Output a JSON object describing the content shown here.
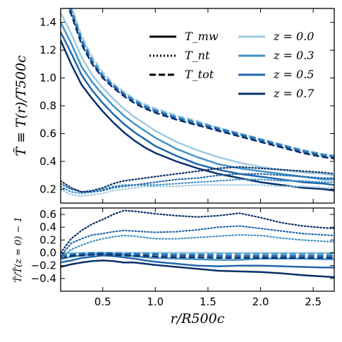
{
  "chart_data": [
    {
      "type": "line",
      "panel": "top",
      "ylabel": "T̃ ≡ T(r)/T500c",
      "xlabel": "",
      "xlim": [
        0.1,
        2.7
      ],
      "ylim": [
        0.1,
        1.5
      ],
      "yticks": [
        "0.2",
        "0.4",
        "0.6",
        "0.8",
        "1.0",
        "1.2",
        "1.4"
      ],
      "legend_styles": [
        {
          "label": "T_mw",
          "style": "solid"
        },
        {
          "label": "T_nt",
          "style": "dotted"
        },
        {
          "label": "T_tot",
          "style": "dashed"
        }
      ],
      "legend_redshifts": [
        {
          "label": "z = 0.0",
          "color": "#9ecae1"
        },
        {
          "label": "z = 0.3",
          "color": "#4292c6"
        },
        {
          "label": "z = 0.5",
          "color": "#2166ac"
        },
        {
          "label": "z = 0.7",
          "color": "#08306b"
        }
      ],
      "x": [
        0.1,
        0.2,
        0.3,
        0.4,
        0.5,
        0.6,
        0.7,
        0.8,
        0.9,
        1.0,
        1.2,
        1.4,
        1.6,
        1.8,
        2.0,
        2.2,
        2.4,
        2.6,
        2.7
      ],
      "series": [
        {
          "name": "T_mw, z = 0.0",
          "style": "solid",
          "color": "#9ecae1",
          "values": [
            1.47,
            1.32,
            1.15,
            1.02,
            0.93,
            0.85,
            0.78,
            0.72,
            0.67,
            0.62,
            0.54,
            0.48,
            0.43,
            0.39,
            0.36,
            0.34,
            0.32,
            0.31,
            0.3
          ]
        },
        {
          "name": "T_mw, z = 0.3",
          "style": "solid",
          "color": "#4292c6",
          "values": [
            1.4,
            1.25,
            1.08,
            0.97,
            0.88,
            0.8,
            0.73,
            0.67,
            0.62,
            0.57,
            0.49,
            0.43,
            0.38,
            0.35,
            0.33,
            0.31,
            0.29,
            0.27,
            0.27
          ]
        },
        {
          "name": "T_mw, z = 0.5",
          "style": "solid",
          "color": "#2166ac",
          "values": [
            1.33,
            1.18,
            1.02,
            0.91,
            0.82,
            0.74,
            0.67,
            0.61,
            0.56,
            0.51,
            0.44,
            0.38,
            0.34,
            0.31,
            0.29,
            0.27,
            0.25,
            0.24,
            0.23
          ]
        },
        {
          "name": "T_mw, z = 0.7",
          "style": "solid",
          "color": "#08306b",
          "values": [
            1.27,
            1.1,
            0.95,
            0.85,
            0.76,
            0.68,
            0.61,
            0.55,
            0.5,
            0.46,
            0.4,
            0.35,
            0.31,
            0.28,
            0.25,
            0.23,
            0.21,
            0.2,
            0.19
          ]
        },
        {
          "name": "T_tot, z = 0.0",
          "style": "dashed",
          "color": "#9ecae1",
          "values": [
            1.65,
            1.52,
            1.3,
            1.15,
            1.04,
            0.96,
            0.9,
            0.85,
            0.81,
            0.78,
            0.73,
            0.69,
            0.64,
            0.6,
            0.56,
            0.52,
            0.48,
            0.45,
            0.44
          ]
        },
        {
          "name": "T_tot, z = 0.3",
          "style": "dashed",
          "color": "#4292c6",
          "values": [
            1.63,
            1.5,
            1.28,
            1.13,
            1.02,
            0.95,
            0.89,
            0.84,
            0.8,
            0.77,
            0.72,
            0.68,
            0.64,
            0.6,
            0.56,
            0.52,
            0.48,
            0.45,
            0.44
          ]
        },
        {
          "name": "T_tot, z = 0.5",
          "style": "dashed",
          "color": "#2166ac",
          "values": [
            1.62,
            1.48,
            1.26,
            1.11,
            1.01,
            0.94,
            0.88,
            0.83,
            0.79,
            0.76,
            0.71,
            0.67,
            0.63,
            0.59,
            0.55,
            0.51,
            0.47,
            0.44,
            0.43
          ]
        },
        {
          "name": "T_tot, z = 0.7",
          "style": "dashed",
          "color": "#08306b",
          "values": [
            1.6,
            1.46,
            1.24,
            1.1,
            1.0,
            0.93,
            0.87,
            0.82,
            0.78,
            0.75,
            0.7,
            0.66,
            0.62,
            0.58,
            0.54,
            0.5,
            0.46,
            0.43,
            0.42
          ]
        },
        {
          "name": "T_nt, z = 0.0",
          "style": "dotted",
          "color": "#9ecae1",
          "values": [
            0.2,
            0.16,
            0.15,
            0.16,
            0.17,
            0.19,
            0.2,
            0.21,
            0.22,
            0.22,
            0.22,
            0.23,
            0.23,
            0.23,
            0.23,
            0.22,
            0.22,
            0.21,
            0.21
          ]
        },
        {
          "name": "T_nt, z = 0.3",
          "style": "dotted",
          "color": "#4292c6",
          "values": [
            0.22,
            0.18,
            0.17,
            0.18,
            0.2,
            0.22,
            0.23,
            0.23,
            0.23,
            0.23,
            0.24,
            0.25,
            0.26,
            0.27,
            0.27,
            0.26,
            0.26,
            0.25,
            0.25
          ]
        },
        {
          "name": "T_nt, z = 0.5",
          "style": "dotted",
          "color": "#2166ac",
          "values": [
            0.24,
            0.2,
            0.18,
            0.18,
            0.19,
            0.21,
            0.22,
            0.23,
            0.24,
            0.25,
            0.27,
            0.28,
            0.3,
            0.31,
            0.31,
            0.3,
            0.29,
            0.28,
            0.28
          ]
        },
        {
          "name": "T_nt, z = 0.7",
          "style": "dotted",
          "color": "#08306b",
          "values": [
            0.26,
            0.21,
            0.18,
            0.19,
            0.21,
            0.24,
            0.26,
            0.27,
            0.28,
            0.29,
            0.31,
            0.33,
            0.35,
            0.36,
            0.35,
            0.34,
            0.33,
            0.32,
            0.31
          ]
        }
      ]
    },
    {
      "type": "line",
      "panel": "bottom",
      "ylabel": "T̃/T̃(z = 0) − 1",
      "xlabel": "r/R500c",
      "xlim": [
        0.1,
        2.7
      ],
      "ylim": [
        -0.6,
        0.7
      ],
      "yticks": [
        "−0.4",
        "−0.2",
        "0.0",
        "0.2",
        "0.4",
        "0.6"
      ],
      "xticks": [
        "0.5",
        "1.0",
        "1.5",
        "2.0",
        "2.5"
      ],
      "x": [
        0.1,
        0.2,
        0.3,
        0.4,
        0.5,
        0.6,
        0.7,
        0.8,
        0.9,
        1.0,
        1.2,
        1.4,
        1.6,
        1.8,
        2.0,
        2.2,
        2.4,
        2.6,
        2.7
      ],
      "series": [
        {
          "name": "T_mw, z = 0.0",
          "style": "solid",
          "color": "#9ecae1",
          "values": [
            0,
            0,
            0,
            0,
            0,
            0,
            0,
            0,
            0,
            0,
            0,
            0,
            0,
            0,
            0,
            0,
            0,
            0,
            0
          ]
        },
        {
          "name": "T_mw, z = 0.3",
          "style": "solid",
          "color": "#4292c6",
          "values": [
            -0.1,
            -0.06,
            -0.04,
            -0.02,
            -0.01,
            -0.02,
            -0.03,
            -0.05,
            -0.07,
            -0.08,
            -0.09,
            -0.1,
            -0.11,
            -0.11,
            -0.09,
            -0.09,
            -0.09,
            -0.1,
            -0.1
          ]
        },
        {
          "name": "T_mw, z = 0.5",
          "style": "solid",
          "color": "#2166ac",
          "values": [
            -0.15,
            -0.12,
            -0.08,
            -0.06,
            -0.04,
            -0.05,
            -0.07,
            -0.09,
            -0.12,
            -0.14,
            -0.17,
            -0.2,
            -0.21,
            -0.2,
            -0.2,
            -0.21,
            -0.22,
            -0.23,
            -0.23
          ]
        },
        {
          "name": "T_mw, z = 0.7",
          "style": "solid",
          "color": "#08306b",
          "values": [
            -0.22,
            -0.18,
            -0.15,
            -0.13,
            -0.12,
            -0.13,
            -0.15,
            -0.15,
            -0.17,
            -0.19,
            -0.22,
            -0.25,
            -0.28,
            -0.29,
            -0.3,
            -0.32,
            -0.35,
            -0.37,
            -0.38
          ]
        },
        {
          "name": "T_tot, z = 0.3",
          "style": "dashed",
          "color": "#4292c6",
          "values": [
            -0.03,
            -0.02,
            -0.01,
            0.0,
            0.0,
            0.0,
            -0.01,
            -0.01,
            -0.01,
            -0.01,
            -0.02,
            -0.02,
            -0.02,
            -0.02,
            -0.02,
            -0.02,
            -0.02,
            -0.02,
            -0.02
          ]
        },
        {
          "name": "T_tot, z = 0.5",
          "style": "dashed",
          "color": "#2166ac",
          "values": [
            -0.05,
            -0.03,
            -0.02,
            -0.01,
            -0.01,
            -0.01,
            -0.02,
            -0.02,
            -0.03,
            -0.03,
            -0.04,
            -0.04,
            -0.05,
            -0.05,
            -0.05,
            -0.05,
            -0.05,
            -0.05,
            -0.05
          ]
        },
        {
          "name": "T_tot, z = 0.7",
          "style": "dashed",
          "color": "#08306b",
          "values": [
            -0.08,
            -0.05,
            -0.04,
            -0.03,
            -0.02,
            -0.03,
            -0.04,
            -0.05,
            -0.05,
            -0.06,
            -0.07,
            -0.07,
            -0.08,
            -0.08,
            -0.08,
            -0.08,
            -0.08,
            -0.08,
            -0.08
          ]
        },
        {
          "name": "T_nt, z = 0.3",
          "style": "dotted",
          "color": "#4292c6",
          "values": [
            -0.1,
            0.05,
            0.12,
            0.18,
            0.22,
            0.25,
            0.27,
            0.26,
            0.24,
            0.22,
            0.22,
            0.24,
            0.26,
            0.28,
            0.27,
            0.23,
            0.2,
            0.18,
            0.17
          ]
        },
        {
          "name": "T_nt, z = 0.5",
          "style": "dotted",
          "color": "#2166ac",
          "values": [
            -0.05,
            0.15,
            0.22,
            0.28,
            0.3,
            0.33,
            0.35,
            0.34,
            0.33,
            0.32,
            0.33,
            0.36,
            0.4,
            0.42,
            0.38,
            0.34,
            0.3,
            0.28,
            0.27
          ]
        },
        {
          "name": "T_nt, z = 0.7",
          "style": "dotted",
          "color": "#08306b",
          "values": [
            0.0,
            0.22,
            0.35,
            0.45,
            0.52,
            0.6,
            0.66,
            0.65,
            0.63,
            0.61,
            0.58,
            0.56,
            0.58,
            0.62,
            0.55,
            0.47,
            0.42,
            0.39,
            0.38
          ]
        }
      ]
    }
  ]
}
